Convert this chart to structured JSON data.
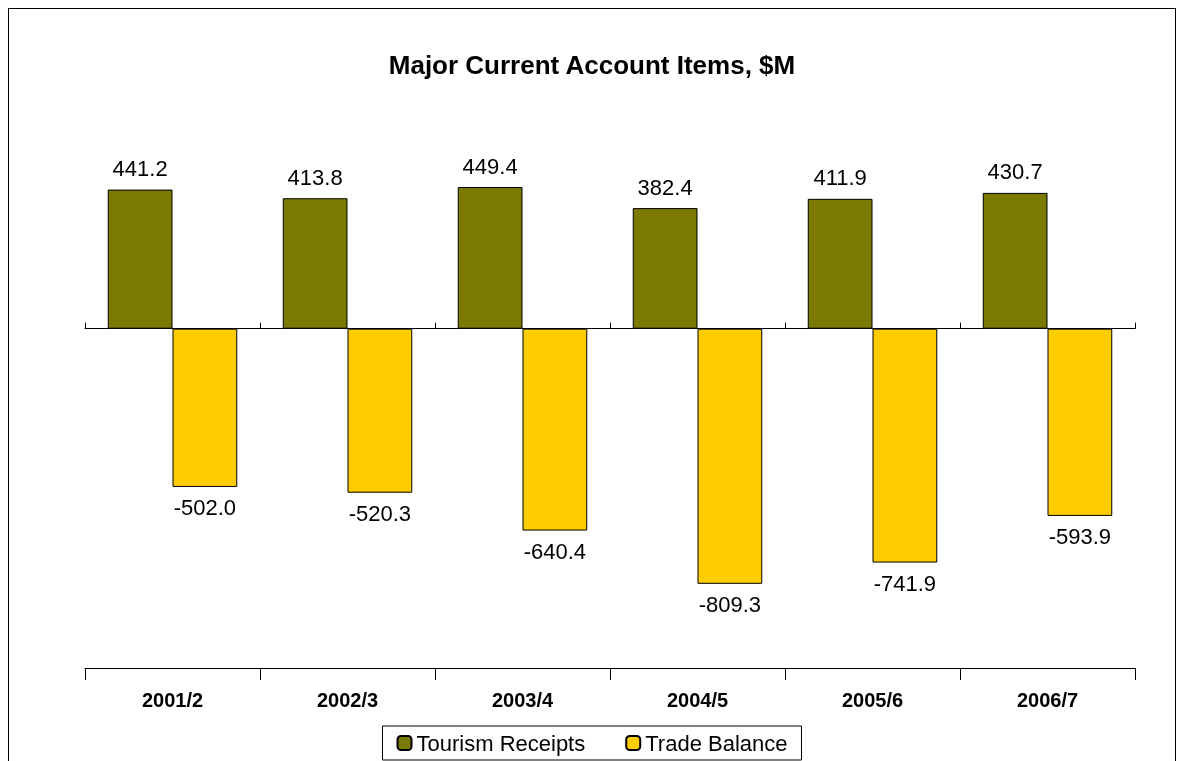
{
  "chart_data": {
    "type": "bar",
    "title": "Major Current Account Items, $M",
    "categories": [
      "2001/2",
      "2002/3",
      "2003/4",
      "2004/5",
      "2005/6",
      "2006/7"
    ],
    "series": [
      {
        "name": "Tourism Receipts",
        "color": "#7a7a00",
        "values": [
          441.2,
          413.8,
          449.4,
          382.4,
          411.9,
          430.7
        ],
        "value_labels": [
          "441.2",
          "413.8",
          "449.4",
          "382.4",
          "411.9",
          "430.7"
        ]
      },
      {
        "name": "Trade Balance",
        "color": "#ffcc00",
        "values": [
          -502.0,
          -520.3,
          -640.4,
          -809.3,
          -741.9,
          -593.9
        ],
        "value_labels": [
          "-502.0",
          "-520.3",
          "-640.4",
          "-809.3",
          "-741.9",
          "-593.9"
        ]
      }
    ],
    "grid": false,
    "legend": "bottom"
  }
}
